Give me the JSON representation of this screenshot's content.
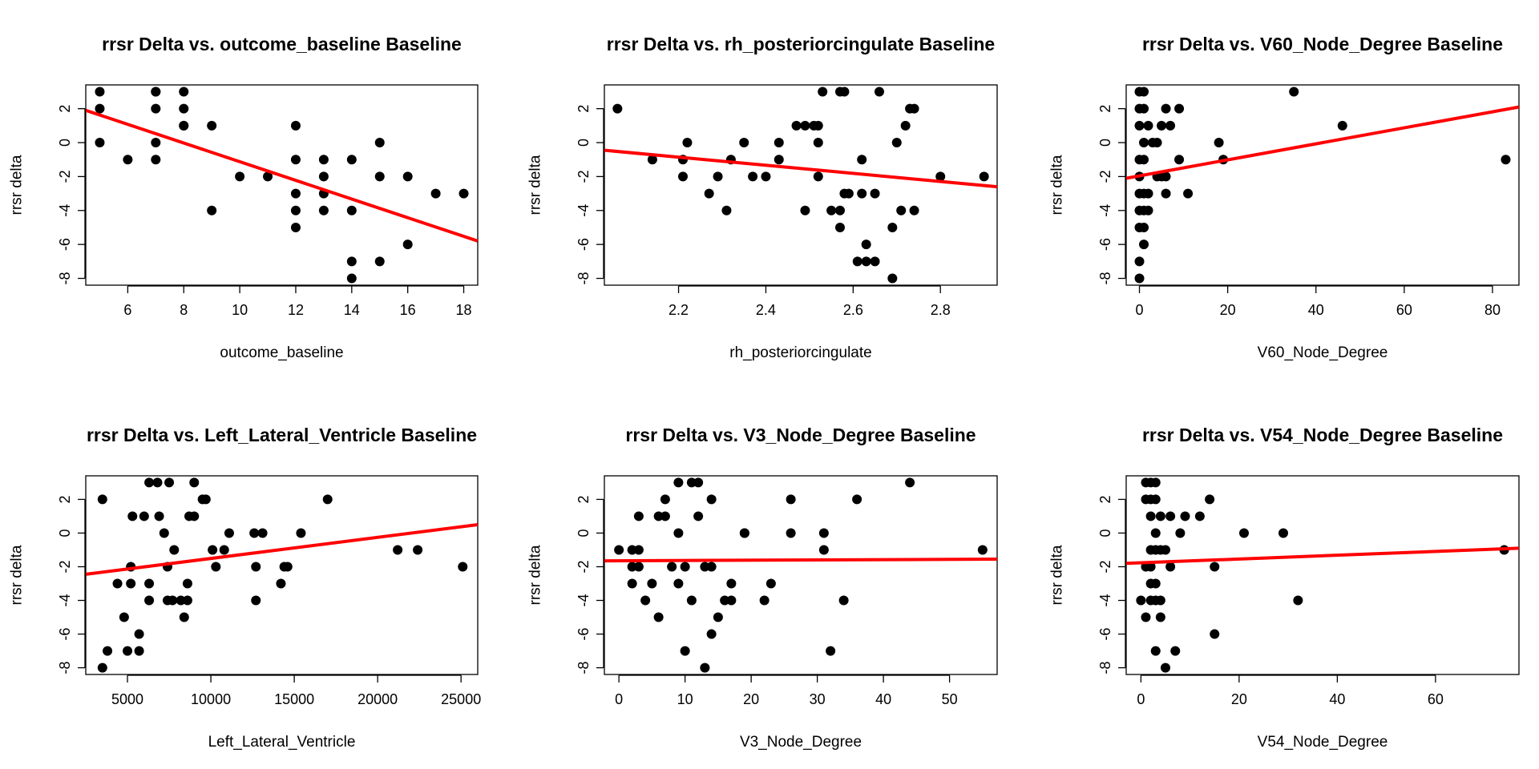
{
  "chart_data": [
    {
      "type": "scatter",
      "title": "rrsr Delta vs. outcome_baseline Baseline",
      "xlabel": "outcome_baseline",
      "ylabel": "rrsr delta",
      "xlim": [
        4.5,
        18.5
      ],
      "ylim": [
        -8.4,
        3.4
      ],
      "xticks": [
        6,
        8,
        10,
        12,
        14,
        16,
        18
      ],
      "yticks": [
        -8,
        -6,
        -4,
        -2,
        0,
        2
      ],
      "points": [
        [
          5,
          3
        ],
        [
          5,
          2
        ],
        [
          5,
          0
        ],
        [
          6,
          -1
        ],
        [
          7,
          3
        ],
        [
          7,
          3
        ],
        [
          7,
          2
        ],
        [
          7,
          0
        ],
        [
          7,
          -1
        ],
        [
          8,
          3
        ],
        [
          8,
          2
        ],
        [
          8,
          1
        ],
        [
          8,
          1
        ],
        [
          9,
          1
        ],
        [
          9,
          -4
        ],
        [
          10,
          -2
        ],
        [
          11,
          -2
        ],
        [
          12,
          1
        ],
        [
          12,
          -1
        ],
        [
          12,
          -3
        ],
        [
          12,
          -4
        ],
        [
          12,
          -5
        ],
        [
          13,
          -1
        ],
        [
          13,
          -2
        ],
        [
          13,
          -3
        ],
        [
          13,
          -4
        ],
        [
          14,
          -1
        ],
        [
          14,
          -4
        ],
        [
          14,
          -7
        ],
        [
          14,
          -8
        ],
        [
          15,
          0
        ],
        [
          15,
          -2
        ],
        [
          15,
          -7
        ],
        [
          16,
          -2
        ],
        [
          16,
          -6
        ],
        [
          17,
          -3
        ],
        [
          18,
          -3
        ]
      ],
      "fit_line": {
        "color": "#ff0000",
        "endpoints": [
          [
            4.5,
            1.9
          ],
          [
            18.5,
            -5.8
          ]
        ]
      },
      "grid": false,
      "legend": "none"
    },
    {
      "type": "scatter",
      "title": "rrsr Delta vs. rh_posteriorcingulate Baseline",
      "xlabel": "rh_posteriorcingulate",
      "ylabel": "rrsr delta",
      "xlim": [
        2.03,
        2.93
      ],
      "ylim": [
        -8.4,
        3.4
      ],
      "xticks": [
        2.2,
        2.4,
        2.6,
        2.8
      ],
      "yticks": [
        -8,
        -6,
        -4,
        -2,
        0,
        2
      ],
      "points": [
        [
          2.06,
          2
        ],
        [
          2.14,
          -1
        ],
        [
          2.21,
          -1
        ],
        [
          2.21,
          -2
        ],
        [
          2.22,
          0
        ],
        [
          2.27,
          -3
        ],
        [
          2.29,
          -2
        ],
        [
          2.31,
          -4
        ],
        [
          2.32,
          -1
        ],
        [
          2.35,
          0
        ],
        [
          2.37,
          -2
        ],
        [
          2.4,
          -2
        ],
        [
          2.43,
          -1
        ],
        [
          2.43,
          0
        ],
        [
          2.47,
          1
        ],
        [
          2.49,
          1
        ],
        [
          2.49,
          -4
        ],
        [
          2.51,
          1
        ],
        [
          2.52,
          1
        ],
        [
          2.52,
          0
        ],
        [
          2.52,
          -2
        ],
        [
          2.53,
          3
        ],
        [
          2.55,
          -4
        ],
        [
          2.57,
          3
        ],
        [
          2.57,
          -4
        ],
        [
          2.57,
          -5
        ],
        [
          2.58,
          -3
        ],
        [
          2.58,
          3
        ],
        [
          2.59,
          -3
        ],
        [
          2.61,
          -7
        ],
        [
          2.62,
          -3
        ],
        [
          2.62,
          -1
        ],
        [
          2.63,
          -6
        ],
        [
          2.63,
          -7
        ],
        [
          2.65,
          -7
        ],
        [
          2.65,
          -3
        ],
        [
          2.66,
          3
        ],
        [
          2.69,
          -5
        ],
        [
          2.69,
          -8
        ],
        [
          2.7,
          0
        ],
        [
          2.71,
          -4
        ],
        [
          2.72,
          1
        ],
        [
          2.73,
          2
        ],
        [
          2.74,
          2
        ],
        [
          2.74,
          -4
        ],
        [
          2.8,
          -2
        ],
        [
          2.9,
          -2
        ]
      ],
      "fit_line": {
        "color": "#ff0000",
        "endpoints": [
          [
            2.03,
            -0.45
          ],
          [
            2.93,
            -2.6
          ]
        ]
      },
      "grid": false,
      "legend": "none"
    },
    {
      "type": "scatter",
      "title": "rrsr Delta vs. V60_Node_Degree Baseline",
      "xlabel": "V60_Node_Degree",
      "ylabel": "rrsr delta",
      "xlim": [
        -3,
        86
      ],
      "ylim": [
        -8.4,
        3.4
      ],
      "xticks": [
        0,
        20,
        40,
        60,
        80
      ],
      "yticks": [
        -8,
        -6,
        -4,
        -2,
        0,
        2
      ],
      "points": [
        [
          0,
          3
        ],
        [
          0,
          2
        ],
        [
          0,
          1
        ],
        [
          0,
          -1
        ],
        [
          0,
          -2
        ],
        [
          0,
          -3
        ],
        [
          0,
          -4
        ],
        [
          0,
          -5
        ],
        [
          0,
          -7
        ],
        [
          0,
          -8
        ],
        [
          1,
          3
        ],
        [
          1,
          2
        ],
        [
          1,
          0
        ],
        [
          1,
          -1
        ],
        [
          1,
          -3
        ],
        [
          1,
          -4
        ],
        [
          1,
          -5
        ],
        [
          1,
          -6
        ],
        [
          2,
          1
        ],
        [
          2,
          -3
        ],
        [
          2,
          -4
        ],
        [
          3,
          0
        ],
        [
          4,
          0
        ],
        [
          4,
          -2
        ],
        [
          5,
          1
        ],
        [
          5,
          -2
        ],
        [
          6,
          2
        ],
        [
          6,
          -2
        ],
        [
          6,
          -3
        ],
        [
          7,
          1
        ],
        [
          9,
          2
        ],
        [
          9,
          -1
        ],
        [
          11,
          -3
        ],
        [
          18,
          0
        ],
        [
          19,
          -1
        ],
        [
          35,
          3
        ],
        [
          46,
          1
        ],
        [
          83,
          -1
        ]
      ],
      "fit_line": {
        "color": "#ff0000",
        "endpoints": [
          [
            -3,
            -2.1
          ],
          [
            86,
            2.1
          ]
        ]
      },
      "grid": false,
      "legend": "none"
    },
    {
      "type": "scatter",
      "title": "rrsr Delta vs. Left_Lateral_Ventricle Baseline",
      "xlabel": "Left_Lateral_Ventricle",
      "ylabel": "rrsr delta",
      "xlim": [
        2500,
        26000
      ],
      "ylim": [
        -8.4,
        3.4
      ],
      "xticks": [
        5000,
        10000,
        15000,
        20000,
        25000
      ],
      "yticks": [
        -8,
        -6,
        -4,
        -2,
        0,
        2
      ],
      "points": [
        [
          3500,
          2
        ],
        [
          3500,
          -8
        ],
        [
          3800,
          -7
        ],
        [
          4400,
          -3
        ],
        [
          4800,
          -5
        ],
        [
          5000,
          -7
        ],
        [
          5200,
          -2
        ],
        [
          5200,
          -3
        ],
        [
          5300,
          1
        ],
        [
          5700,
          -6
        ],
        [
          5700,
          -7
        ],
        [
          6000,
          1
        ],
        [
          6300,
          -3
        ],
        [
          6300,
          -4
        ],
        [
          6300,
          3
        ],
        [
          6800,
          3
        ],
        [
          6900,
          1
        ],
        [
          7200,
          0
        ],
        [
          7400,
          -4
        ],
        [
          7400,
          -2
        ],
        [
          7500,
          3
        ],
        [
          7700,
          -4
        ],
        [
          7800,
          -1
        ],
        [
          8200,
          -4
        ],
        [
          8400,
          -5
        ],
        [
          8600,
          -3
        ],
        [
          8600,
          -4
        ],
        [
          8700,
          1
        ],
        [
          9000,
          1
        ],
        [
          9000,
          3
        ],
        [
          9500,
          2
        ],
        [
          9700,
          2
        ],
        [
          10100,
          -1
        ],
        [
          10300,
          -2
        ],
        [
          10800,
          -1
        ],
        [
          11100,
          0
        ],
        [
          12600,
          0
        ],
        [
          12700,
          -2
        ],
        [
          12700,
          -4
        ],
        [
          13100,
          0
        ],
        [
          14200,
          -3
        ],
        [
          14400,
          -2
        ],
        [
          14600,
          -2
        ],
        [
          15400,
          0
        ],
        [
          17000,
          2
        ],
        [
          21200,
          -1
        ],
        [
          22400,
          -1
        ],
        [
          25100,
          -2
        ]
      ],
      "fit_line": {
        "color": "#ff0000",
        "endpoints": [
          [
            2500,
            -2.45
          ],
          [
            26000,
            0.5
          ]
        ]
      },
      "grid": false,
      "legend": "none"
    },
    {
      "type": "scatter",
      "title": "rrsr Delta vs. V3_Node_Degree Baseline",
      "xlabel": "V3_Node_Degree",
      "ylabel": "rrsr delta",
      "xlim": [
        -2.2,
        57.2
      ],
      "ylim": [
        -8.4,
        3.4
      ],
      "xticks": [
        0,
        10,
        20,
        30,
        40,
        50
      ],
      "yticks": [
        -8,
        -6,
        -4,
        -2,
        0,
        2
      ],
      "points": [
        [
          0,
          -1
        ],
        [
          2,
          -1
        ],
        [
          2,
          -2
        ],
        [
          2,
          -3
        ],
        [
          3,
          -1
        ],
        [
          3,
          -2
        ],
        [
          3,
          1
        ],
        [
          4,
          -4
        ],
        [
          5,
          -3
        ],
        [
          6,
          -5
        ],
        [
          6,
          1
        ],
        [
          7,
          1
        ],
        [
          7,
          2
        ],
        [
          8,
          -2
        ],
        [
          9,
          -3
        ],
        [
          9,
          0
        ],
        [
          9,
          3
        ],
        [
          10,
          -2
        ],
        [
          10,
          -7
        ],
        [
          11,
          -4
        ],
        [
          11,
          3
        ],
        [
          12,
          3
        ],
        [
          12,
          1
        ],
        [
          13,
          -2
        ],
        [
          13,
          -8
        ],
        [
          14,
          -2
        ],
        [
          14,
          2
        ],
        [
          14,
          -6
        ],
        [
          15,
          -5
        ],
        [
          16,
          -4
        ],
        [
          17,
          -4
        ],
        [
          17,
          -3
        ],
        [
          19,
          0
        ],
        [
          19,
          0
        ],
        [
          22,
          -4
        ],
        [
          23,
          -3
        ],
        [
          26,
          2
        ],
        [
          26,
          0
        ],
        [
          31,
          0
        ],
        [
          31,
          -1
        ],
        [
          32,
          -7
        ],
        [
          34,
          -4
        ],
        [
          36,
          2
        ],
        [
          44,
          3
        ],
        [
          55,
          -1
        ]
      ],
      "fit_line": {
        "color": "#ff0000",
        "endpoints": [
          [
            -2.2,
            -1.65
          ],
          [
            57.2,
            -1.55
          ]
        ]
      },
      "grid": false,
      "legend": "none"
    },
    {
      "type": "scatter",
      "title": "rrsr Delta vs. V54_Node_Degree Baseline",
      "xlabel": "V54_Node_Degree",
      "ylabel": "rrsr delta",
      "xlim": [
        -3,
        77
      ],
      "ylim": [
        -8.4,
        3.4
      ],
      "xticks": [
        0,
        20,
        40,
        60
      ],
      "yticks": [
        -8,
        -6,
        -4,
        -2,
        0,
        2
      ],
      "points": [
        [
          0,
          -4
        ],
        [
          1,
          -2
        ],
        [
          1,
          -5
        ],
        [
          1,
          2
        ],
        [
          1,
          3
        ],
        [
          2,
          3
        ],
        [
          2,
          2
        ],
        [
          2,
          1
        ],
        [
          2,
          -1
        ],
        [
          2,
          -2
        ],
        [
          2,
          -3
        ],
        [
          2,
          -4
        ],
        [
          3,
          3
        ],
        [
          3,
          2
        ],
        [
          3,
          0
        ],
        [
          3,
          -1
        ],
        [
          3,
          -3
        ],
        [
          3,
          -4
        ],
        [
          3,
          -7
        ],
        [
          4,
          1
        ],
        [
          4,
          -1
        ],
        [
          4,
          -4
        ],
        [
          4,
          -5
        ],
        [
          5,
          -8
        ],
        [
          5,
          -1
        ],
        [
          6,
          1
        ],
        [
          6,
          -2
        ],
        [
          7,
          -7
        ],
        [
          8,
          0
        ],
        [
          9,
          1
        ],
        [
          12,
          1
        ],
        [
          14,
          2
        ],
        [
          15,
          -2
        ],
        [
          15,
          -6
        ],
        [
          21,
          0
        ],
        [
          29,
          0
        ],
        [
          32,
          -4
        ],
        [
          74,
          -1
        ]
      ],
      "fit_line": {
        "color": "#ff0000",
        "endpoints": [
          [
            -3,
            -1.8
          ],
          [
            77,
            -0.9
          ]
        ]
      },
      "grid": false,
      "legend": "none"
    }
  ]
}
